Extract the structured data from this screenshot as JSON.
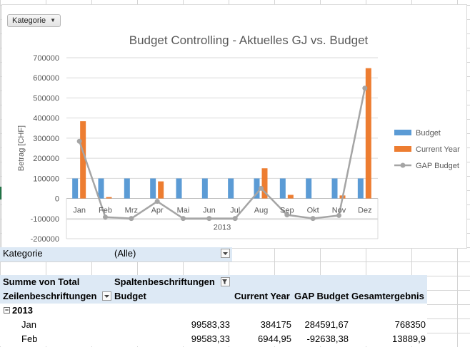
{
  "colors": {
    "budget": "#5b9bd5",
    "current_year": "#ed7d31",
    "gap": "#a5a5a5",
    "pivot_header_bg": "#dde9f5",
    "pivot_border": "#9dc3e6"
  },
  "chart": {
    "field_button": "Kategorie"
  },
  "chart_data": {
    "type": "bar",
    "title": "Budget Controlling - Aktuelles GJ vs. Budget",
    "ylabel": "Betrag [CHF]",
    "xlabel": "2013",
    "ylim": [
      -200000,
      700000
    ],
    "yticks": [
      "700000",
      "600000",
      "500000",
      "400000",
      "300000",
      "200000",
      "100000",
      "0",
      "-100000",
      "-200000"
    ],
    "categories": [
      "Jan",
      "Feb",
      "Mrz",
      "Apr",
      "Mai",
      "Jun",
      "Jul",
      "Aug",
      "Sep",
      "Okt",
      "Nov",
      "Dez"
    ],
    "legend_position": "right",
    "series": [
      {
        "name": "Budget",
        "kind": "bar",
        "values": [
          99583,
          99583,
          99583,
          99583,
          99583,
          99583,
          99583,
          99583,
          99583,
          99583,
          99583,
          99583
        ]
      },
      {
        "name": "Current Year",
        "kind": "bar",
        "values": [
          384175,
          6945,
          0,
          85000,
          0,
          0,
          0,
          150000,
          18000,
          0,
          15000,
          648000
        ]
      },
      {
        "name": "GAP Budget",
        "kind": "line",
        "values": [
          284592,
          -92638,
          -99583,
          -14583,
          -99583,
          -99583,
          -99583,
          50417,
          -81583,
          -99583,
          -84583,
          548417
        ]
      }
    ]
  },
  "pivot": {
    "filter_label": "Kategorie",
    "filter_value": "(Alle)",
    "sum_label": "Summe von Total",
    "col_labels_label": "Spaltenbeschriftungen",
    "row_labels_label": "Zeilenbeschriftungen",
    "headers": [
      "Budget",
      "Current Year",
      "GAP Budget",
      "Gesamtergebnis"
    ],
    "group": "2013",
    "rows": [
      {
        "label": "Jan",
        "budget": "99583,33",
        "current": "384175",
        "gap": "284591,67",
        "total": "768350"
      },
      {
        "label": "Feb",
        "budget": "99583,33",
        "current": "6944,95",
        "gap": "-92638,38",
        "total": "13889,9"
      }
    ]
  }
}
